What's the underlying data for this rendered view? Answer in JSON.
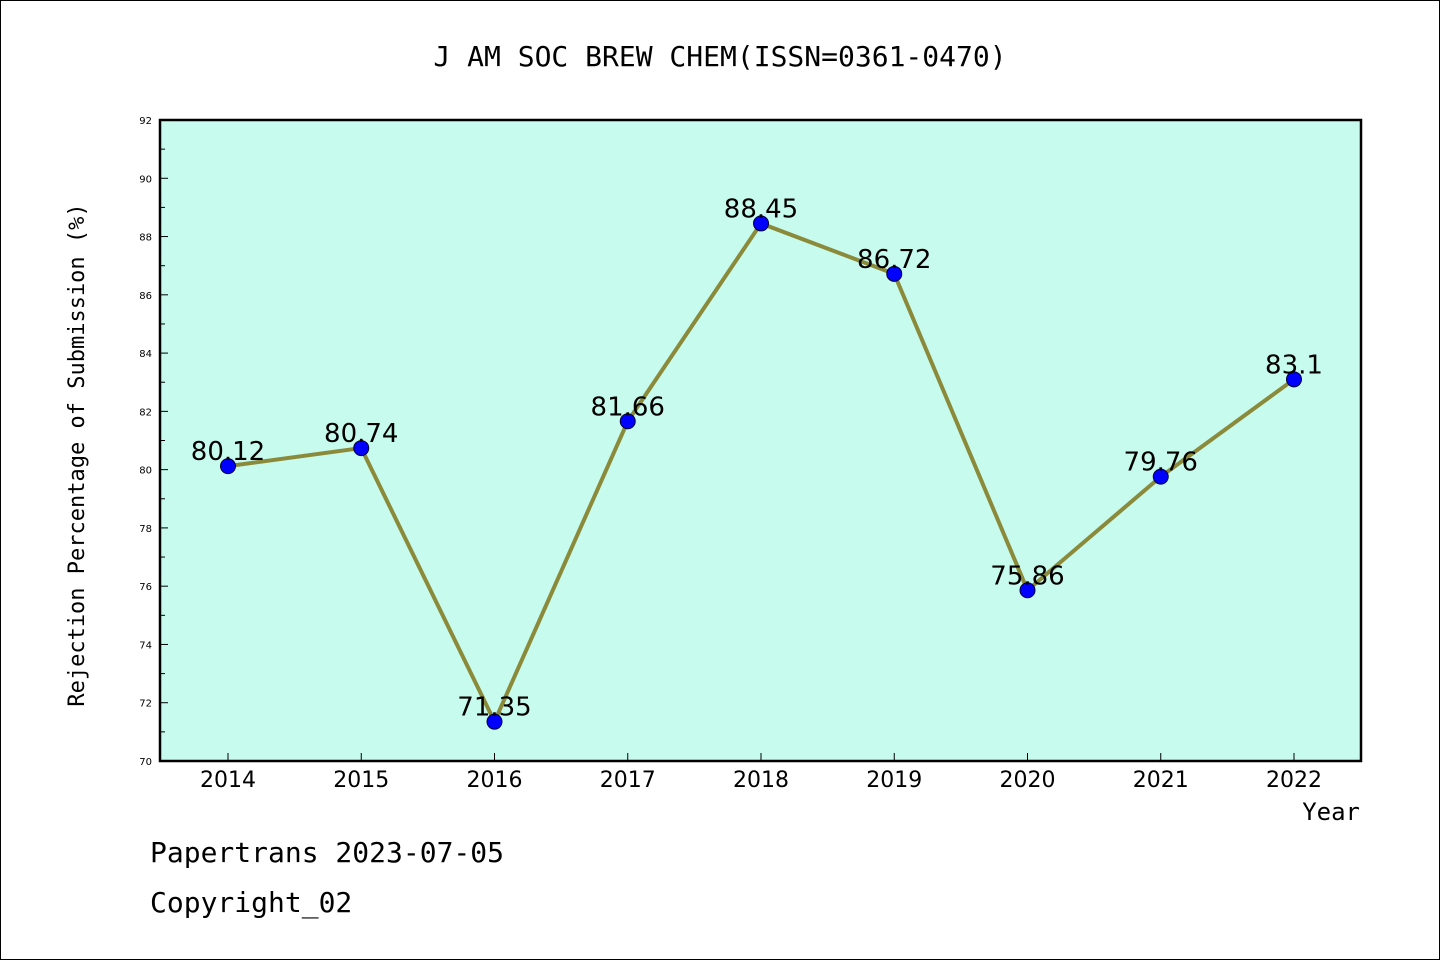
{
  "footer": {
    "line1": "Papertrans 2023-07-05",
    "line2": "Copyright_02"
  },
  "colors": {
    "plot_background": "#c6fbed",
    "line": "#8b8a3a",
    "marker": "#0000ff"
  },
  "chart_data": {
    "type": "line",
    "title": "J AM SOC BREW CHEM(ISSN=0361-0470)",
    "xlabel": "Year",
    "ylabel": "Rejection Percentage of Submission (%)",
    "categories": [
      "2014",
      "2015",
      "2016",
      "2017",
      "2018",
      "2019",
      "2020",
      "2021",
      "2022"
    ],
    "series": [
      {
        "values": [
          80.12,
          80.74,
          71.35,
          81.66,
          88.45,
          86.72,
          75.86,
          79.76,
          83.1
        ],
        "labels": [
          "80.12",
          "80.74",
          "71.35",
          "81.66",
          "88.45",
          "86.72",
          "75.86",
          "79.76",
          "83.1"
        ]
      }
    ],
    "ylim": [
      70,
      92
    ],
    "yticks": [
      "70",
      "72",
      "74",
      "76",
      "78",
      "80",
      "82",
      "84",
      "86",
      "88",
      "90",
      "92"
    ],
    "grid": false,
    "legend": "none"
  }
}
